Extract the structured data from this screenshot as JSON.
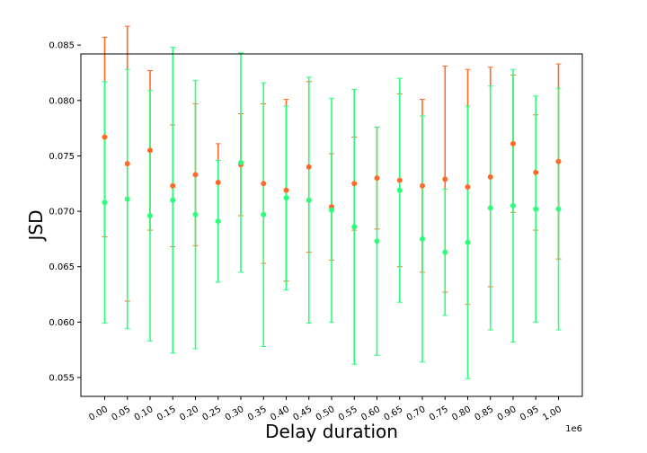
{
  "chart_data": {
    "type": "scatter",
    "title": "",
    "xlabel": "Delay duration",
    "ylabel": "JSD",
    "x_offset_label": "1e6",
    "x": [
      0.0,
      0.05,
      0.1,
      0.15,
      0.2,
      0.25,
      0.3,
      0.35,
      0.4,
      0.45,
      0.5,
      0.55,
      0.6,
      0.65,
      0.7,
      0.75,
      0.8,
      0.85,
      0.9,
      0.95,
      1.0
    ],
    "x_tick_labels": [
      "0.00",
      "0.05",
      "0.10",
      "0.15",
      "0.20",
      "0.25",
      "0.30",
      "0.35",
      "0.40",
      "0.45",
      "0.50",
      "0.55",
      "0.60",
      "0.65",
      "0.70",
      "0.75",
      "0.80",
      "0.85",
      "0.90",
      "0.95",
      "1.00"
    ],
    "xlim": [
      -0.0525,
      1.0525
    ],
    "ylim": [
      0.0533,
      0.0842
    ],
    "y_ticks": [
      0.055,
      0.06,
      0.065,
      0.07,
      0.075,
      0.08,
      0.085
    ],
    "y_tick_labels": [
      "0.055",
      "0.060",
      "0.065",
      "0.070",
      "0.075",
      "0.080",
      "0.085"
    ],
    "grid": false,
    "series": [
      {
        "color": "#ff6a2b",
        "values": [
          0.0767,
          0.0743,
          0.0755,
          0.0723,
          0.0733,
          0.0726,
          0.0742,
          0.0725,
          0.0719,
          0.074,
          0.0704,
          0.0725,
          0.073,
          0.0728,
          0.0723,
          0.0729,
          0.0722,
          0.0731,
          0.0761,
          0.0735,
          0.0745
        ],
        "err": [
          0.009,
          0.0124,
          0.0072,
          0.0055,
          0.0064,
          0.0035,
          0.0046,
          0.0072,
          0.0082,
          0.0077,
          0.0048,
          0.0042,
          0.0046,
          0.0078,
          0.0078,
          0.0102,
          0.0106,
          0.0099,
          0.0062,
          0.0052,
          0.0088
        ]
      },
      {
        "color": "#2bff7a",
        "values": [
          0.0708,
          0.0711,
          0.0696,
          0.071,
          0.0697,
          0.0691,
          0.0744,
          0.0697,
          0.0712,
          0.071,
          0.0701,
          0.0686,
          0.0673,
          0.0719,
          0.0675,
          0.0663,
          0.0672,
          0.0703,
          0.0705,
          0.0702,
          0.0702
        ],
        "err": [
          0.0109,
          0.0117,
          0.0113,
          0.0138,
          0.0121,
          0.0055,
          0.0099,
          0.0119,
          0.0083,
          0.0111,
          0.0101,
          0.0124,
          0.0103,
          0.0101,
          0.0111,
          0.0057,
          0.0123,
          0.011,
          0.0123,
          0.0102,
          0.0109
        ]
      }
    ]
  }
}
